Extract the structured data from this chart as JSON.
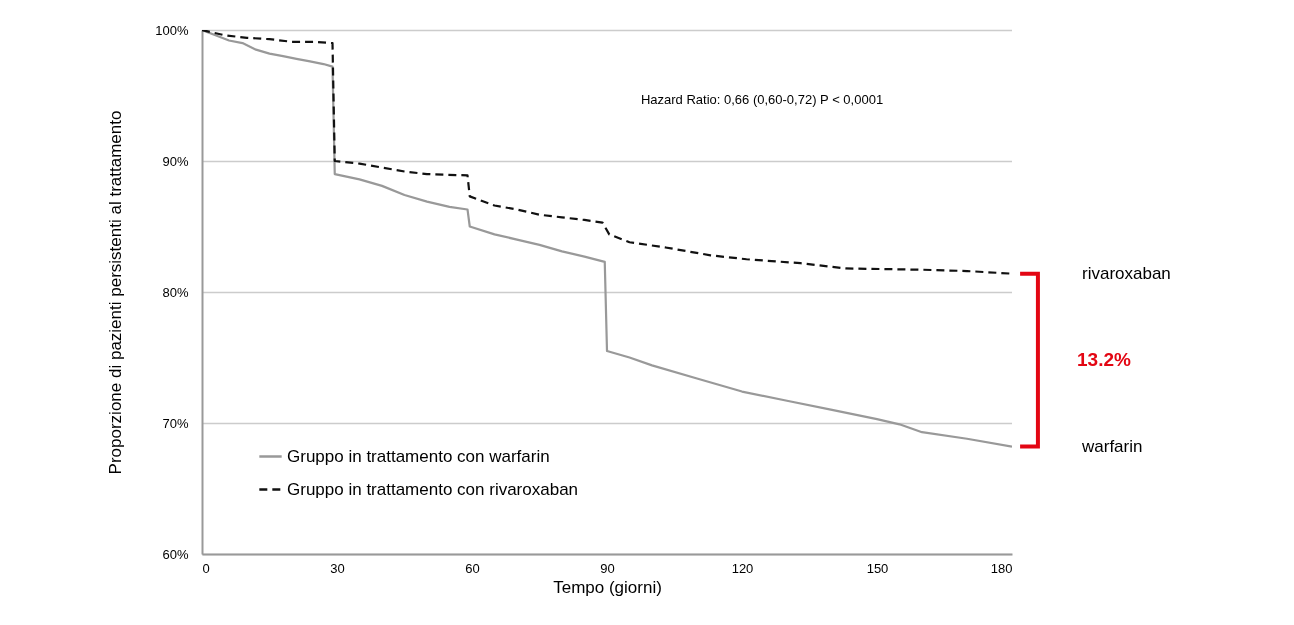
{
  "chart_data": {
    "type": "line",
    "xlabel": "Tempo (giorni)",
    "ylabel": "Proporzione di pazienti persistenti al trattamento",
    "xlim": [
      0,
      180
    ],
    "xticks": [
      0,
      30,
      60,
      90,
      120,
      150,
      180
    ],
    "ylim": [
      60,
      100
    ],
    "yticks": [
      {
        "value": 60,
        "label": "60%"
      },
      {
        "value": 70,
        "label": "70%"
      },
      {
        "value": 80,
        "label": "80%"
      },
      {
        "value": 90,
        "label": "90%"
      },
      {
        "value": 100,
        "label": "100%"
      }
    ],
    "grid": "y",
    "legend": "bottom left",
    "series": [
      {
        "name": "Gruppo in trattamento con warfarin",
        "color": "#999999",
        "line_style": "solid",
        "x": [
          0,
          3,
          6,
          9,
          12,
          15,
          18,
          21,
          24,
          27,
          29,
          29.5,
          35,
          40,
          45,
          50,
          55,
          59,
          59.5,
          65,
          70,
          75,
          80,
          85,
          89.5,
          90,
          95,
          100,
          110,
          120,
          130,
          140,
          150,
          155,
          160,
          170,
          180
        ],
        "values": [
          100,
          99.6,
          99.2,
          99,
          98.5,
          98.2,
          98,
          97.8,
          97.6,
          97.4,
          97.2,
          89,
          88.6,
          88.1,
          87.4,
          86.9,
          86.5,
          86.3,
          85,
          84.4,
          84,
          83.6,
          83.1,
          82.7,
          82.3,
          75.5,
          75,
          74.4,
          73.4,
          72.4,
          71.7,
          71,
          70.3,
          69.9,
          69.3,
          68.8,
          68.2
        ]
      },
      {
        "name": "Gruppo in trattamento con rivaroxaban",
        "color": "#111111",
        "line_style": "dashed",
        "x": [
          0,
          5,
          10,
          15,
          20,
          25,
          29,
          29.5,
          35,
          40,
          45,
          50,
          59,
          59.5,
          65,
          70,
          75,
          80,
          85,
          89,
          90.5,
          95,
          103,
          113,
          121,
          133,
          143,
          160,
          170,
          180
        ],
        "values": [
          100,
          99.6,
          99.4,
          99.3,
          99.1,
          99.1,
          99,
          90,
          89.8,
          89.5,
          89.2,
          89,
          88.9,
          87.3,
          86.6,
          86.3,
          85.9,
          85.7,
          85.5,
          85.3,
          84.4,
          83.8,
          83.4,
          82.8,
          82.5,
          82.2,
          81.8,
          81.7,
          81.6,
          81.4
        ]
      }
    ],
    "annotations": [
      "Hazard Ratio: 0,66 (0,60-0,72) P < 0,0001",
      "rivaroxaban",
      "warfarin",
      "13.2%"
    ]
  }
}
